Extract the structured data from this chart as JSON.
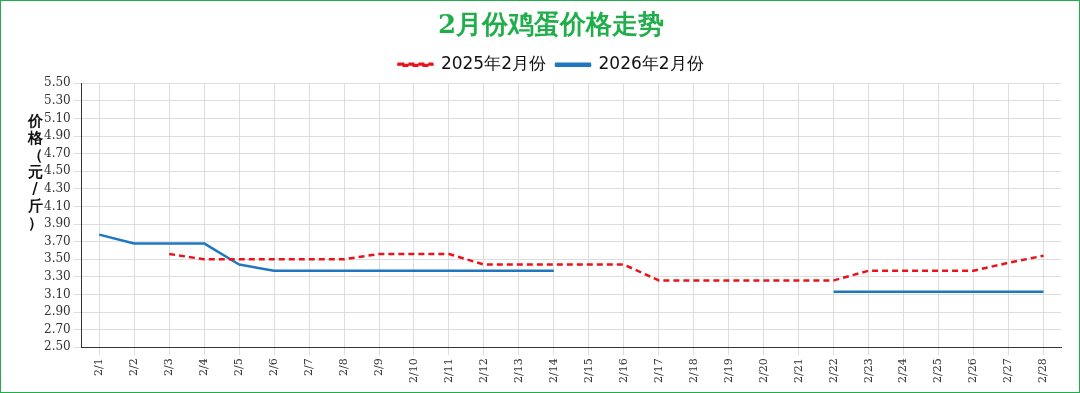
{
  "chart_data": {
    "type": "line",
    "title": "2月份鸡蛋价格走势",
    "ylabel": "价格（元/斤）",
    "categories": [
      "2/1",
      "2/2",
      "2/3",
      "2/4",
      "2/5",
      "2/6",
      "2/7",
      "2/8",
      "2/9",
      "2/10",
      "2/11",
      "2/12",
      "2/13",
      "2/14",
      "2/15",
      "2/16",
      "2/17",
      "2/18",
      "2/19",
      "2/20",
      "2/21",
      "2/22",
      "2/23",
      "2/24",
      "2/25",
      "2/26",
      "2/27",
      "2/28"
    ],
    "series": [
      {
        "name": "2025年2月份",
        "color": "#e8141c",
        "line_style": "dashed",
        "values": [
          null,
          null,
          3.56,
          3.5,
          3.5,
          3.5,
          3.5,
          3.5,
          3.56,
          3.56,
          3.56,
          3.44,
          3.44,
          3.44,
          3.44,
          3.44,
          3.26,
          3.26,
          3.26,
          3.26,
          3.26,
          3.26,
          3.37,
          3.37,
          3.37,
          3.37,
          3.46,
          3.54
        ]
      },
      {
        "name": "2026年2月份",
        "color": "#1f77c0",
        "line_style": "solid",
        "values": [
          3.78,
          3.68,
          3.68,
          3.68,
          3.44,
          3.37,
          3.37,
          3.37,
          3.37,
          3.37,
          3.37,
          3.37,
          3.37,
          3.37,
          null,
          null,
          null,
          null,
          null,
          null,
          null,
          3.13,
          3.13,
          3.13,
          3.13,
          3.13,
          3.13,
          3.13
        ]
      }
    ],
    "ylim": [
      2.5,
      5.5
    ],
    "yticks": [
      {
        "value": 2.5,
        "label": "2.50"
      },
      {
        "value": 2.7,
        "label": "2.70"
      },
      {
        "value": 2.9,
        "label": "2.90"
      },
      {
        "value": 3.1,
        "label": "3.10"
      },
      {
        "value": 3.3,
        "label": "3.30"
      },
      {
        "value": 3.5,
        "label": "3.50"
      },
      {
        "value": 3.7,
        "label": "3.70"
      },
      {
        "value": 3.9,
        "label": "3.90"
      },
      {
        "value": 4.1,
        "label": "4.10"
      },
      {
        "value": 4.3,
        "label": "4.30"
      },
      {
        "value": 4.5,
        "label": "4.50"
      },
      {
        "value": 4.7,
        "label": "4.70"
      },
      {
        "value": 4.9,
        "label": "4.90"
      },
      {
        "value": 5.1,
        "label": "5.10"
      },
      {
        "value": 5.3,
        "label": "5.30"
      },
      {
        "value": 5.5,
        "label": "5.50"
      }
    ],
    "grid": true,
    "legend": "top",
    "marker": "none"
  }
}
